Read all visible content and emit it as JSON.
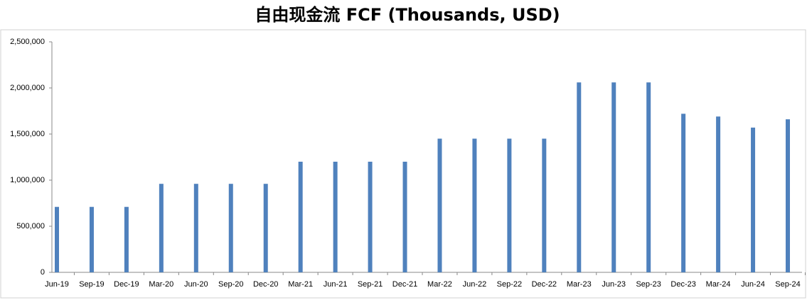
{
  "chart_data": {
    "type": "bar",
    "title": "自由现金流 FCF (Thousands, USD)",
    "categories": [
      "Jun-19",
      "Sep-19",
      "Dec-19",
      "Mar-20",
      "Jun-20",
      "Sep-20",
      "Dec-20",
      "Mar-21",
      "Jun-21",
      "Sep-21",
      "Dec-21",
      "Mar-22",
      "Jun-22",
      "Sep-22",
      "Dec-22",
      "Mar-23",
      "Jun-23",
      "Sep-23",
      "Dec-23",
      "Mar-24",
      "Jun-24",
      "Sep-24"
    ],
    "values": [
      710000,
      710000,
      710000,
      960000,
      960000,
      960000,
      960000,
      1200000,
      1200000,
      1200000,
      1200000,
      1450000,
      1450000,
      1450000,
      1450000,
      2060000,
      2060000,
      2060000,
      1720000,
      1690000,
      1570000,
      1660000
    ],
    "color": "#4f81bd",
    "ylim": [
      0,
      2500000
    ],
    "yticks": [
      0,
      {
        "value": 500000,
        "label": "500,000"
      },
      {
        "value": 1000000,
        "label": "1,000,000"
      },
      {
        "value": 1500000,
        "label": "1,500,000"
      },
      {
        "value": 2000000,
        "label": "2,000,000"
      },
      {
        "value": 2500000,
        "label": "2,500,000"
      }
    ],
    "grid": false
  }
}
